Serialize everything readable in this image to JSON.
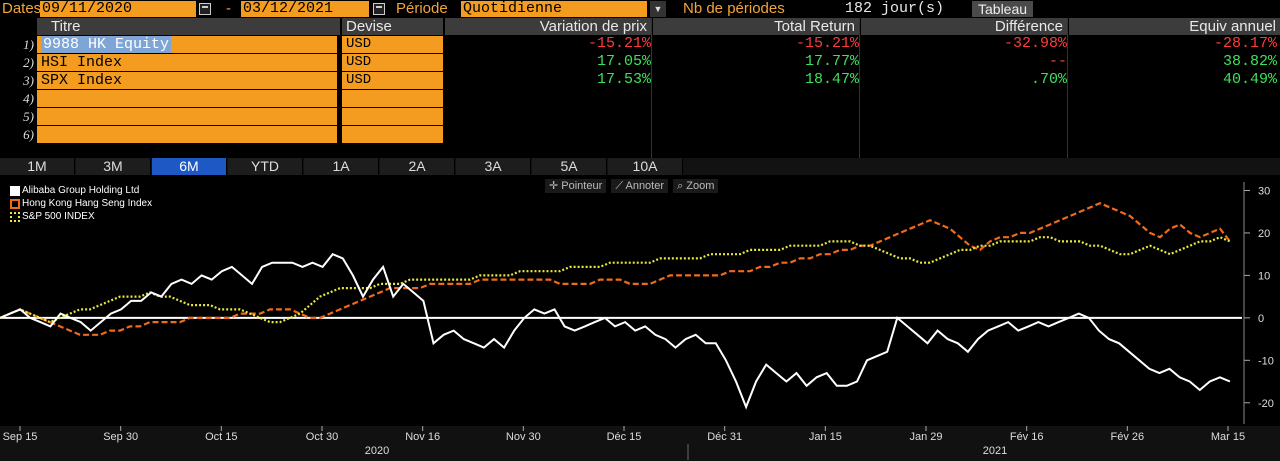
{
  "toolbar": {
    "dates_label": "Dates",
    "start_date": "09/11/2020",
    "dash": "-",
    "end_date": "03/12/2021",
    "period_label": "Période",
    "period_value": "Quotidienne",
    "nb_periods_label": "Nb de périodes",
    "nb_periods_value": "182 jour(s)",
    "view_button": "Tableau"
  },
  "table": {
    "headers": {
      "titre": "Titre",
      "devise": "Devise",
      "variation": "Variation de prix",
      "total_return": "Total Return",
      "difference": "Différence",
      "equiv": "Equiv annuel"
    },
    "rows": [
      {
        "num": "1)",
        "title": "9988 HK Equity",
        "currency": "USD",
        "variation": "-15.21%",
        "total_return": "-15.21%",
        "difference": "-32.98%",
        "equiv": "-28.17%"
      },
      {
        "num": "2)",
        "title": "HSI Index",
        "currency": "USD",
        "variation": "17.05%",
        "total_return": "17.77%",
        "difference": "--",
        "equiv": "38.82%"
      },
      {
        "num": "3)",
        "title": "SPX Index",
        "currency": "USD",
        "variation": "17.53%",
        "total_return": "18.47%",
        "difference": ".70%",
        "equiv": "40.49%"
      },
      {
        "num": "4)",
        "title": "",
        "currency": ""
      },
      {
        "num": "5)",
        "title": "",
        "currency": ""
      },
      {
        "num": "6)",
        "title": "",
        "currency": ""
      }
    ],
    "colors": {
      "negative": "#ff3b3b",
      "positive": "#3ee05a",
      "input_bg": "#f39c1f"
    }
  },
  "period_tabs": [
    "1M",
    "3M",
    "6M",
    "YTD",
    "1A",
    "2A",
    "3A",
    "5A",
    "10A"
  ],
  "active_tab": "6M",
  "chart_tools": {
    "pointer": "Pointeur",
    "annotate": "Annoter",
    "zoom": "Zoom"
  },
  "chart_data": {
    "type": "line",
    "legend_placement": "top-left",
    "y_axis_side": "right",
    "ylim": [
      -25,
      32
    ],
    "yticks": [
      30,
      20,
      10,
      0,
      -10,
      -20
    ],
    "x_tick_labels": [
      "Sep 15",
      "Sep 30",
      "Oct 15",
      "Oct 30",
      "Nov 16",
      "Nov 30",
      "Déc 15",
      "Déc 31",
      "Jan 15",
      "Jan 29",
      "Fév 16",
      "Fév 26",
      "Mar 15"
    ],
    "x_group_labels": [
      "2020",
      "2021"
    ],
    "series": [
      {
        "name": "Alibaba Group Holding Ltd",
        "color": "#ffffff",
        "style": "solid",
        "values": [
          0,
          1,
          2,
          0,
          -1,
          -2,
          1,
          0,
          -1,
          -3,
          -1,
          1,
          2,
          4,
          4,
          6,
          5,
          8,
          9,
          8,
          10,
          9,
          11,
          12,
          10,
          8,
          12,
          13,
          13,
          13,
          12,
          13,
          12,
          15,
          14,
          10,
          5,
          9,
          12,
          5,
          8,
          6,
          4,
          -6,
          -4,
          -3,
          -5,
          -6,
          -7,
          -5,
          -7,
          -3,
          0,
          2,
          1,
          2,
          -2,
          -3,
          -2,
          -1,
          0,
          -2,
          -1,
          -3,
          -2,
          -4,
          -5,
          -7,
          -5,
          -4,
          -6,
          -6,
          -10,
          -15,
          -21,
          -15,
          -11,
          -13,
          -15,
          -13,
          -16,
          -14,
          -13,
          -16,
          -16,
          -15,
          -10,
          -9,
          -8,
          0,
          -2,
          -4,
          -6,
          -3,
          -5,
          -6,
          -8,
          -5,
          -3,
          -2,
          -1,
          -3,
          -2,
          -1,
          -2,
          -1,
          0,
          1,
          0,
          -3,
          -5,
          -6,
          -8,
          -10,
          -12,
          -13,
          -12,
          -14,
          -15,
          -17,
          -15,
          -14,
          -15
        ]
      },
      {
        "name": "Hong Kong Hang Seng Index",
        "color": "#f06a1a",
        "style": "dashed",
        "values": [
          0,
          1,
          2,
          1,
          0,
          -1,
          -2,
          -3,
          -4,
          -4,
          -4,
          -3,
          -3,
          -2,
          -2,
          -1,
          -1,
          -1,
          -1,
          0,
          0,
          0,
          0,
          0,
          1,
          1,
          1,
          2,
          2,
          2,
          1,
          0,
          0,
          1,
          2,
          3,
          4,
          5,
          6,
          7,
          7,
          7,
          7,
          8,
          8,
          8,
          8,
          8,
          9,
          9,
          9,
          9,
          9,
          9,
          9,
          9,
          8,
          8,
          8,
          8,
          9,
          9,
          9,
          8,
          8,
          8,
          9,
          10,
          10,
          10,
          10,
          10,
          10,
          11,
          11,
          11,
          12,
          12,
          13,
          13,
          14,
          14,
          15,
          15,
          16,
          16,
          17,
          17,
          18,
          19,
          20,
          21,
          22,
          23,
          22,
          21,
          19,
          17,
          16,
          18,
          19,
          19,
          20,
          20,
          21,
          22,
          23,
          24,
          25,
          26,
          27,
          26,
          25,
          24,
          22,
          20,
          19,
          21,
          22,
          20,
          19,
          20,
          21,
          18
        ]
      },
      {
        "name": "S&P 500 INDEX",
        "color": "#e8e83a",
        "style": "dotted",
        "values": [
          0,
          1,
          2,
          1,
          0,
          -1,
          0,
          1,
          2,
          2,
          3,
          4,
          5,
          5,
          5,
          6,
          5,
          5,
          4,
          3,
          3,
          3,
          2,
          2,
          2,
          1,
          0,
          -1,
          -1,
          0,
          1,
          3,
          5,
          6,
          7,
          7,
          7,
          7,
          8,
          8,
          8,
          9,
          9,
          9,
          9,
          9,
          9,
          9,
          10,
          10,
          10,
          10,
          11,
          11,
          11,
          11,
          11,
          12,
          12,
          12,
          12,
          13,
          13,
          13,
          13,
          13,
          14,
          14,
          14,
          14,
          14,
          15,
          15,
          15,
          15,
          16,
          16,
          16,
          16,
          17,
          17,
          17,
          17,
          18,
          18,
          18,
          17,
          17,
          16,
          15,
          14,
          14,
          13,
          13,
          14,
          15,
          16,
          16,
          17,
          17,
          18,
          18,
          18,
          18,
          19,
          19,
          18,
          18,
          18,
          17,
          17,
          16,
          15,
          15,
          16,
          17,
          16,
          15,
          16,
          17,
          18,
          18,
          19,
          18
        ]
      }
    ]
  }
}
